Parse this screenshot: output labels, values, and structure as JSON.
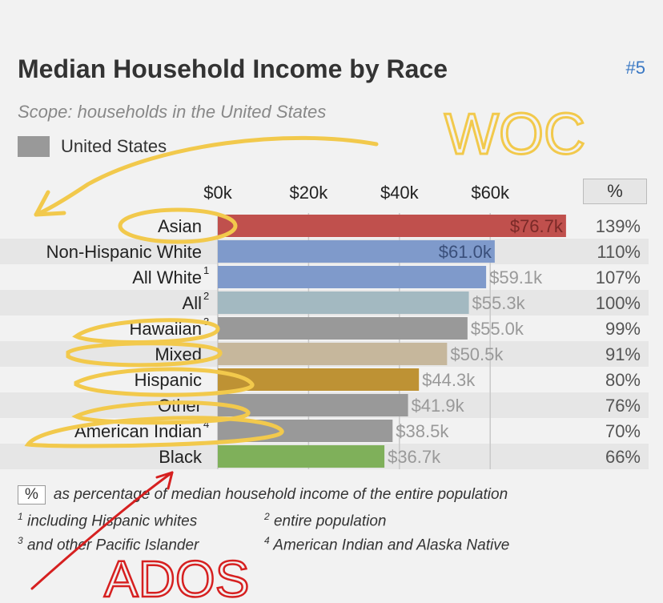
{
  "header": {
    "title": "Median Household Income by Race",
    "rank": "#5",
    "subtitle": "Scope: households in the United States",
    "legend_label": "United States"
  },
  "pct_header": "%",
  "footnotes": {
    "pct_box": "%",
    "pct_note": "as percentage of median household income of the entire population",
    "n1": "including Hispanic whites",
    "n2": "entire population",
    "n3": "and other Pacific Islander",
    "n4": "American Indian and Alaska Native"
  },
  "annotations": {
    "woc": "WOC",
    "ados": "ADOS"
  },
  "chart_data": {
    "type": "bar",
    "orientation": "horizontal",
    "xlim": [
      0,
      80
    ],
    "xticks": [
      "$0k",
      "$20k",
      "$40k",
      "$60k"
    ],
    "xtick_values": [
      0,
      20,
      40,
      60
    ],
    "categories": [
      "Asian",
      "Non-Hispanic White",
      "All White",
      "All",
      "Hawaiian",
      "Mixed",
      "Hispanic",
      "Other",
      "American Indian",
      "Black"
    ],
    "footnote_marks": [
      "",
      "",
      "1",
      "2",
      "3",
      "",
      "",
      "",
      "4",
      ""
    ],
    "values": [
      76.7,
      61.0,
      59.1,
      55.3,
      55.0,
      50.5,
      44.3,
      41.9,
      38.5,
      36.7
    ],
    "value_labels": [
      "$76.7k",
      "$61.0k",
      "$59.1k",
      "$55.3k",
      "$55.0k",
      "$50.5k",
      "$44.3k",
      "$41.9k",
      "$38.5k",
      "$36.7k"
    ],
    "percent_labels": [
      "139%",
      "110%",
      "107%",
      "100%",
      "99%",
      "91%",
      "80%",
      "76%",
      "70%",
      "66%"
    ],
    "colors": [
      "#c0504d",
      "#7f9acb",
      "#7f9acb",
      "#a3b9c1",
      "#999999",
      "#c6b79c",
      "#be9234",
      "#999999",
      "#999999",
      "#7fb05a"
    ],
    "value_label_inside": [
      true,
      true,
      false,
      false,
      false,
      false,
      false,
      false,
      false,
      false
    ],
    "grid": true
  }
}
